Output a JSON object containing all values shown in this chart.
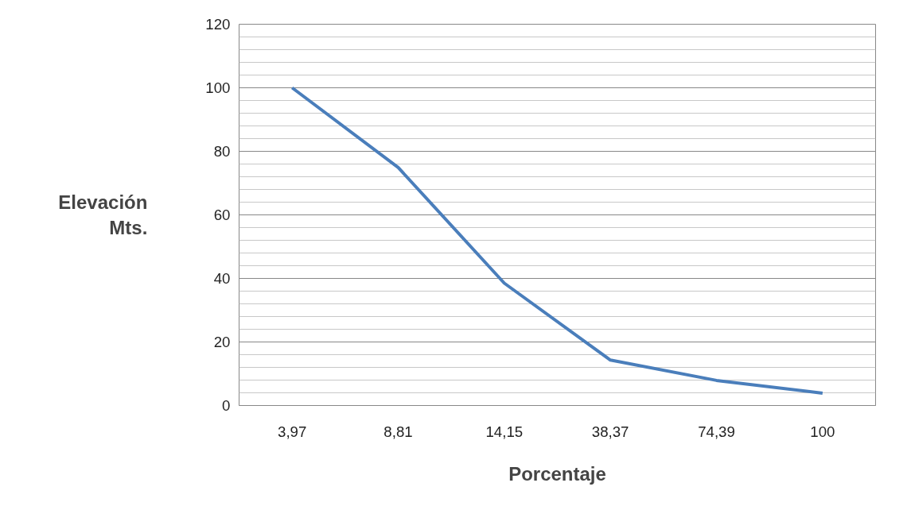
{
  "chart_data": {
    "type": "line",
    "xlabel": "Porcentaje",
    "ylabel": "Elevación Mts.",
    "categories": [
      "3,97",
      "8,81",
      "14,15",
      "38,37",
      "74,39",
      "100"
    ],
    "series": [
      {
        "color": "#4a7ebb",
        "values": [
          100,
          74.9,
          38.5,
          14.3,
          7.9,
          3.9
        ]
      }
    ],
    "ylim": [
      0,
      120
    ],
    "yticks": [
      0,
      20,
      40,
      60,
      80,
      100,
      120
    ],
    "grid": "y",
    "marker": "none",
    "line_style": "solid"
  }
}
